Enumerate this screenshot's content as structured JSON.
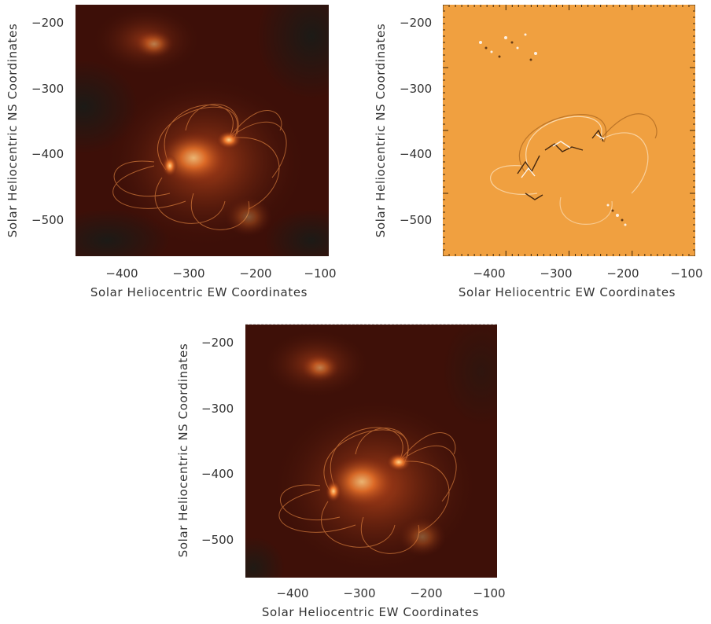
{
  "panels": [
    {
      "id": "top-left",
      "variant": "intensity",
      "background": "#3a0f08",
      "x_ticks": [
        "−400",
        "−300",
        "−200",
        "−100"
      ],
      "y_ticks": [
        "−200",
        "−300",
        "−400",
        "−500"
      ],
      "xlabel": "Solar Heliocentric EW Coordinates",
      "ylabel": "Solar Heliocentric NS Coordinates"
    },
    {
      "id": "top-right",
      "variant": "difference",
      "background": "#f0a040",
      "x_ticks": [
        "−400",
        "−300",
        "−200",
        "−100"
      ],
      "y_ticks": [
        "−200",
        "−300",
        "−400",
        "−500"
      ],
      "xlabel": "Solar Heliocentric EW Coordinates",
      "ylabel": "Solar Heliocentric NS Coordinates"
    },
    {
      "id": "bottom",
      "variant": "intensity",
      "background": "#3a0f08",
      "x_ticks": [
        "−400",
        "−300",
        "−200",
        "−100"
      ],
      "y_ticks": [
        "−200",
        "−300",
        "−400",
        "−500"
      ],
      "xlabel": "Solar Heliocentric EW Coordinates",
      "ylabel": "Solar Heliocentric NS Coordinates"
    }
  ]
}
